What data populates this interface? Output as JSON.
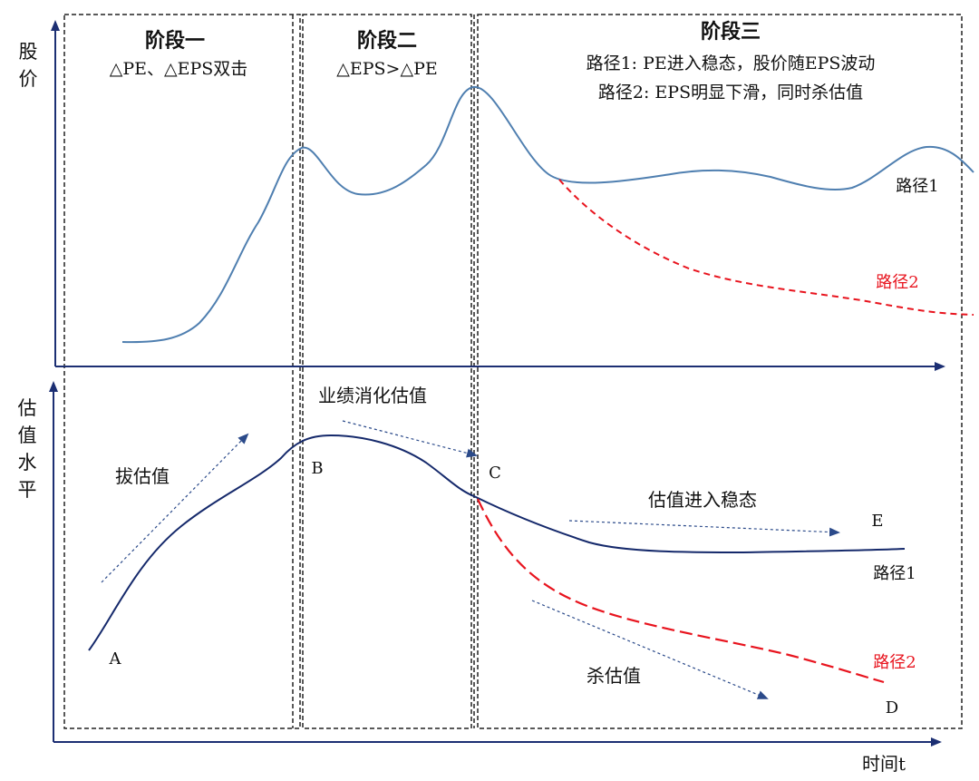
{
  "stages": [
    {
      "title": "阶段一",
      "lines": [
        "△PE、△EPS双击"
      ]
    },
    {
      "title": "阶段二",
      "lines": [
        "△EPS>△PE"
      ]
    },
    {
      "title": "阶段三",
      "lines": [
        "路径1: PE进入稳态，股价随EPS波动",
        "路径2:  EPS明显下滑，同时杀估值"
      ]
    }
  ],
  "top_chart": {
    "ylabel_chars": [
      "股",
      "价"
    ],
    "path1_label": "路径1",
    "path2_label": "路径2"
  },
  "bottom_chart": {
    "ylabel_chars": [
      "估",
      "值",
      "水",
      "平"
    ],
    "xlabel": "时间t",
    "annotations": {
      "raise": "拔估值",
      "digest": "业绩消化估值",
      "steady": "估值进入稳态",
      "kill": "杀估值"
    },
    "points": {
      "A": "A",
      "B": "B",
      "C": "C",
      "D": "D",
      "E": "E"
    },
    "path1_label": "路径1",
    "path2_label": "路径2"
  },
  "colors": {
    "stock_line": "#4f7fb0",
    "valuation_line": "#15296b",
    "path2": "#e8141e",
    "axis": "#1c2f73",
    "arrow": "#2b4a8a"
  }
}
